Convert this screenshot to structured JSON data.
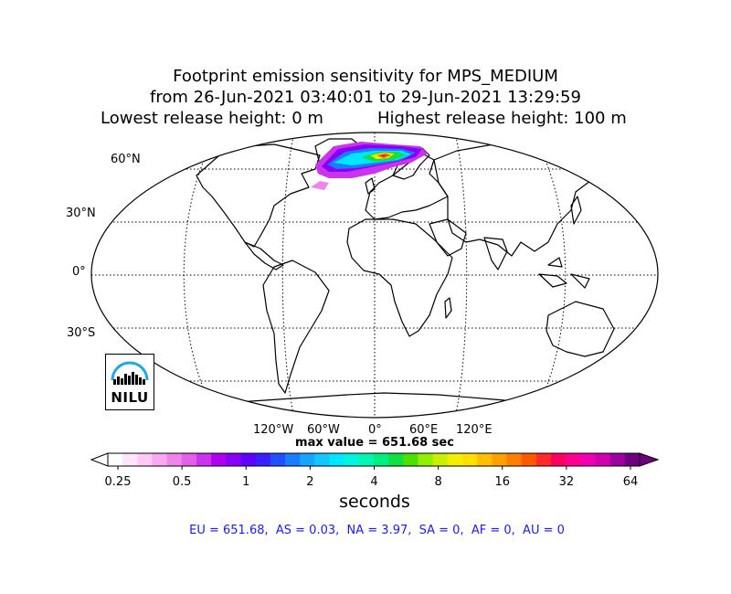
{
  "title": {
    "line1": "Footprint emission sensitivity for MPS_MEDIUM",
    "line2": "from 26-Jun-2021 03:40:01 to 29-Jun-2021 13:29:59",
    "line3a": "Lowest release height: 0 m",
    "line3b": "Highest release height: 100 m"
  },
  "map": {
    "projection": "Robinson",
    "lat_labels": [
      "60°N",
      "30°N",
      "0°",
      "30°S"
    ],
    "lon_labels": [
      "120°W",
      "60°W",
      "0°",
      "60°E",
      "120°E"
    ],
    "gridlines": "dotted",
    "logo_text": "NILU",
    "logo_icon": "nilu-logo-icon",
    "footprint_region": "North Atlantic / Greenland Sea / Scandinavia"
  },
  "max_value_text": "max value = 651.68 sec",
  "colorbar": {
    "ticks": [
      "0.25",
      "0.5",
      "1",
      "2",
      "4",
      "8",
      "16",
      "32",
      "64"
    ],
    "units": "seconds",
    "colors": [
      "#ffffff",
      "#ffe4fa",
      "#ffc8f5",
      "#f7a8f0",
      "#ee86ea",
      "#e060e6",
      "#cc33ee",
      "#b000f0",
      "#8800f5",
      "#6000ff",
      "#3a20ff",
      "#1f50ff",
      "#1a7cff",
      "#17a6ff",
      "#10c8ff",
      "#00e6ff",
      "#00f5e0",
      "#00f5b0",
      "#00f080",
      "#10e040",
      "#50e000",
      "#90f000",
      "#c8f000",
      "#f0f000",
      "#ffe000",
      "#ffc000",
      "#ffa000",
      "#ff8000",
      "#ff5a00",
      "#ff2a2a",
      "#ff0060",
      "#ff0090",
      "#f000b0",
      "#d000b0",
      "#a000a0",
      "#700080"
    ]
  },
  "summary": "EU = 651.68,  AS = 0.03,  NA = 3.97,  SA = 0,  AF = 0,  AU = 0"
}
